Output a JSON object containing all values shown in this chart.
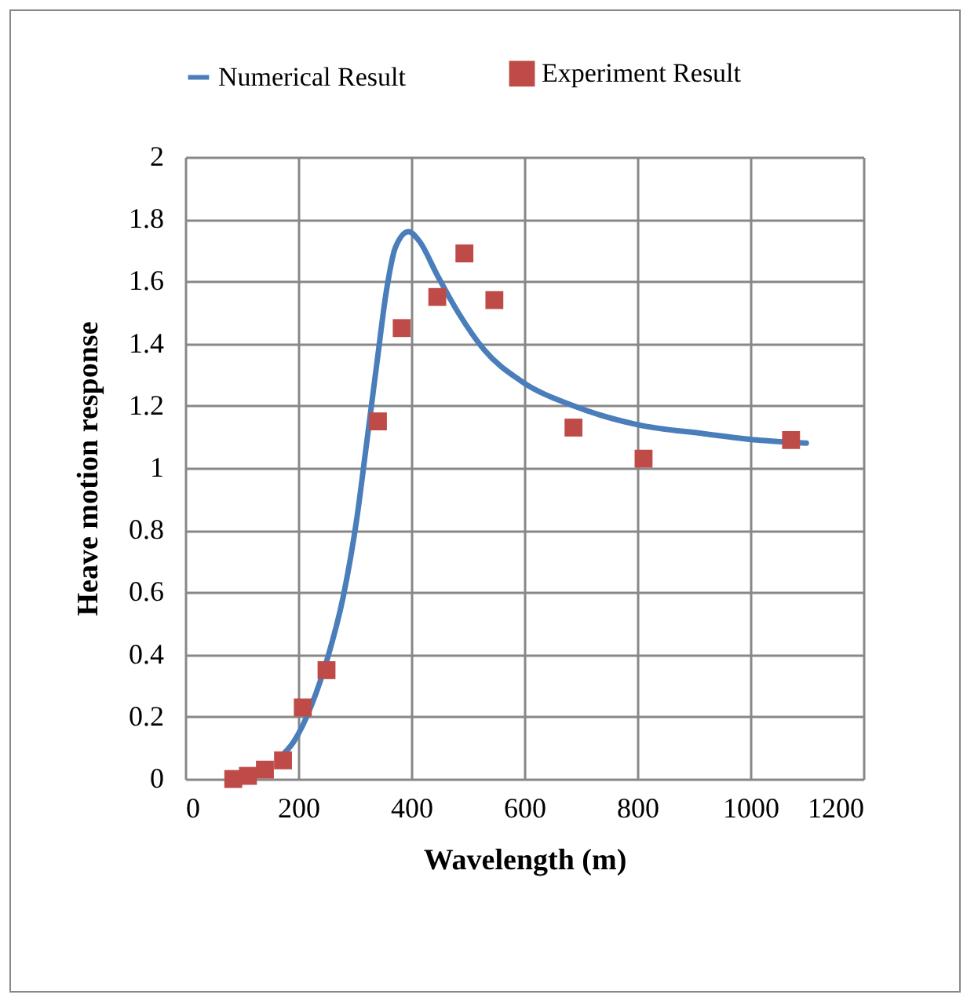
{
  "chart_data": {
    "type": "scatter",
    "xlabel": "Wavelength (m)",
    "ylabel": "Heave motion response",
    "xlim": [
      0,
      1200
    ],
    "xticks": [
      0,
      200,
      400,
      600,
      800,
      1000,
      1200
    ],
    "ylim": [
      0,
      2
    ],
    "yticks": [
      0,
      0.2,
      0.4,
      0.6,
      0.8,
      1,
      1.2,
      1.4,
      1.6,
      1.8,
      2
    ],
    "grid": true,
    "legend": "top",
    "series": [
      {
        "name": "Numerical Result",
        "type": "line",
        "color": "#4a7ebb",
        "marker": "none",
        "line_style": "solid",
        "x": [
          168,
          192,
          224,
          252,
          280,
          303,
          321,
          340,
          356,
          372,
          395,
          414,
          446,
          483,
          529,
          594,
          687,
          799,
          919,
          1011,
          1099
        ],
        "values": [
          0.07,
          0.12,
          0.24,
          0.39,
          0.59,
          0.83,
          1.08,
          1.35,
          1.57,
          1.71,
          1.76,
          1.73,
          1.62,
          1.5,
          1.38,
          1.28,
          1.2,
          1.14,
          1.11,
          1.09,
          1.08
        ]
      },
      {
        "name": "Experiment Result",
        "type": "scatter",
        "color": "#be4b48",
        "marker": "square",
        "x": [
          85,
          111,
          141,
          173,
          208,
          250,
          341,
          383,
          446,
          494,
          547,
          687,
          811,
          1072
        ],
        "values": [
          0,
          0.01,
          0.03,
          0.06,
          0.23,
          0.35,
          1.15,
          1.45,
          1.55,
          1.69,
          1.54,
          1.13,
          1.03,
          1.09
        ]
      }
    ]
  }
}
